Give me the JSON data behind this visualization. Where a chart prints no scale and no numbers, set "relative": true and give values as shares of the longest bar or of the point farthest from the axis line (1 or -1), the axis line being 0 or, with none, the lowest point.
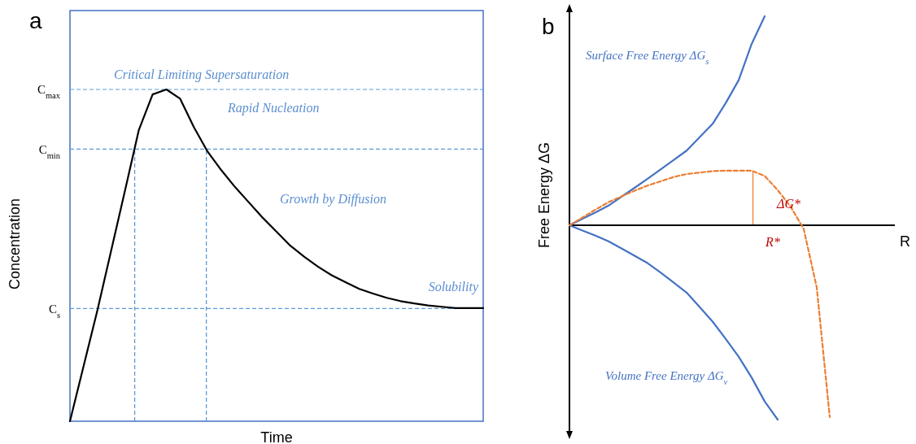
{
  "chart_data": [
    {
      "type": "line",
      "title": "a",
      "xlabel": "Time",
      "ylabel": "Concentration",
      "relative": true,
      "categories": [
        null,
        null,
        null,
        null,
        null,
        null,
        null,
        null,
        null,
        null,
        null,
        null,
        null,
        null,
        null,
        null,
        null,
        null,
        null,
        null,
        null,
        null,
        null,
        null,
        null,
        null,
        null,
        null,
        null,
        null,
        null
      ],
      "series": [
        {
          "color": "#000000",
          "values": [
            0,
            0.168,
            0.336,
            0.516,
            0.696,
            0.878,
            0.985,
            1,
            0.972,
            0.886,
            0.812,
            0.756,
            0.705,
            0.659,
            0.613,
            0.571,
            0.529,
            0.496,
            0.466,
            0.44,
            0.419,
            0.399,
            0.385,
            0.372,
            0.362,
            0.355,
            0.349,
            0.345,
            0.341,
            0.341,
            0.341
          ]
        }
      ],
      "ref_lines": [
        {
          "axis": "y",
          "value": 1,
          "label": "C$_{max}$",
          "color": "#5b9bd5",
          "line_style": "dashed"
        },
        {
          "axis": "y",
          "value": 0.82,
          "label": "C$_{min}$",
          "color": "#5b9bd5",
          "line_style": "dashed"
        },
        {
          "axis": "y",
          "value": 0.34,
          "label": "C$_{s}$",
          "color": "#5b9bd5",
          "line_style": "dashed"
        }
      ],
      "annotations": [
        "Critical Limiting Supersaturation",
        "Rapid Nucleation",
        "Growth by Diffusion",
        "Solubility"
      ]
    },
    {
      "type": "line",
      "title": "b",
      "xlabel": "R",
      "ylabel": "Free Energy ΔG",
      "relative": true,
      "categories": [
        null,
        null,
        null,
        null,
        null,
        null,
        null,
        null,
        null,
        null,
        null,
        null,
        null,
        null,
        null,
        null,
        null,
        null,
        null,
        null,
        null,
        null,
        null,
        null,
        null
      ],
      "series": [
        {
          "name": "Surface Free Energy ΔG$_{s}$",
          "color": "#4472c4",
          "values": [
            0,
            0.031,
            0.061,
            0.094,
            0.137,
            0.179,
            0.222,
            0.267,
            0.312,
            0.357,
            0.421,
            0.485,
            0.584,
            0.694,
            0.868,
            1,
            null,
            null,
            null,
            null,
            null,
            null,
            null,
            null,
            null
          ]
        },
        {
          "name": "Volume Free Energy ΔG$_{v}$",
          "color": "#4472c4",
          "values": [
            0,
            -0.025,
            -0.05,
            -0.077,
            -0.111,
            -0.146,
            -0.181,
            -0.226,
            -0.274,
            -0.322,
            -0.391,
            -0.461,
            -0.543,
            -0.629,
            -0.729,
            -0.843,
            -0.93,
            null,
            null,
            null,
            null,
            null,
            null,
            null,
            null
          ]
        },
        {
          "color": "#ed7d31",
          "line_style": "dashed",
          "values": [
            0,
            0.037,
            0.075,
            0.11,
            0.138,
            0.165,
            0.19,
            0.21,
            0.231,
            0.245,
            0.252,
            0.259,
            0.261,
            0.261,
            0.261,
            0.236,
            0.168,
            0.088,
            -0.018,
            -0.298,
            -0.918,
            null,
            null,
            null,
            null
          ]
        }
      ],
      "annotations": [
        "ΔG*",
        "R*"
      ]
    }
  ]
}
